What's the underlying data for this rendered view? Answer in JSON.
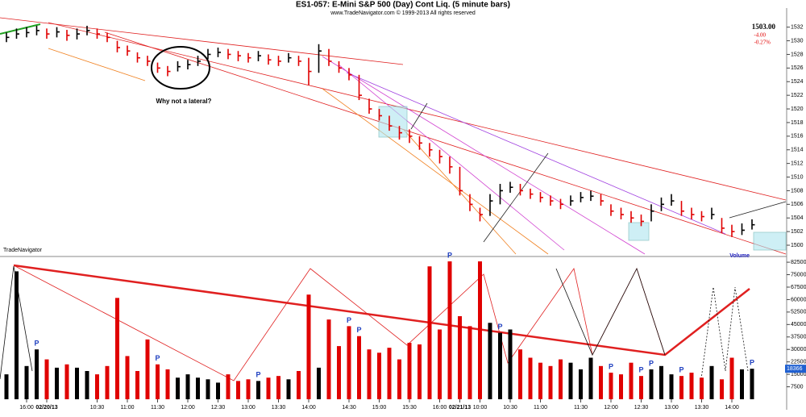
{
  "header": {
    "title": "ES1-057:  E-Mini S&P 500 (Day) Cont Liq.  (5 minute bars)",
    "copyright": "www.TradeNavigator.com © 1999-2013 All rights reserved"
  },
  "watermark": "TradeNavigator",
  "quote": {
    "last": "1503.00",
    "change": "-4.00",
    "change_pct": "-0.27%"
  },
  "annotation": "Why not a lateral?",
  "volume_marker": "P",
  "chart_data": [
    {
      "type": "ohlc",
      "colors": {
        "up": "#000000",
        "down": "#e00000"
      },
      "ylim": [
        1498.7,
        1534.8
      ],
      "yticks": [
        1500,
        1502,
        1504,
        1506,
        1508,
        1510,
        1512,
        1514,
        1516,
        1518,
        1520,
        1522,
        1524,
        1526,
        1528,
        1530,
        1532
      ],
      "series": [
        {
          "name": "High",
          "values": [
            1531.2,
            1531.8,
            1532,
            1532.2,
            1531.8,
            1532,
            1531.6,
            1531.8,
            1532.2,
            1531.8,
            1531.2,
            1530,
            1529.3,
            1528.3,
            1527.8,
            1526.8,
            1526.3,
            1527,
            1527.2,
            1527.8,
            1528.8,
            1529,
            1528.8,
            1528.5,
            1528.2,
            1528.5,
            1528,
            1527.8,
            1528.2,
            1527.8,
            1527.5,
            1529.5,
            1528.8,
            1527,
            1526,
            1525,
            1521.5,
            1520,
            1519,
            1517.5,
            1517,
            1516,
            1515,
            1514,
            1513,
            1511.5,
            1507.5,
            1505.5,
            1507.5,
            1509,
            1509.3,
            1509,
            1508.3,
            1507.8,
            1507.3,
            1506.8,
            1507.3,
            1507.8,
            1508,
            1507.5,
            1506,
            1505.5,
            1505,
            1504.5,
            1506,
            1507,
            1507.5,
            1506.5,
            1505.5,
            1505,
            1505.5,
            1504,
            1503,
            1503.2,
            1503.8
          ]
        },
        {
          "name": "Low",
          "values": [
            1529.8,
            1530.3,
            1530.5,
            1530.8,
            1530.3,
            1530.5,
            1530,
            1530.2,
            1530.8,
            1530.3,
            1529.8,
            1528.3,
            1527.8,
            1526.8,
            1526.3,
            1525.3,
            1524.8,
            1525.5,
            1525.8,
            1526.3,
            1527.3,
            1527.6,
            1527.3,
            1527,
            1526.8,
            1527,
            1526.5,
            1526.3,
            1526.8,
            1526.3,
            1523.5,
            1525.3,
            1526.3,
            1525.3,
            1524.2,
            1521.3,
            1519.3,
            1518.3,
            1516.8,
            1515.5,
            1515,
            1514,
            1513,
            1512,
            1510.5,
            1507.3,
            1505,
            1503.5,
            1504.3,
            1506,
            1507.7,
            1507.3,
            1506.8,
            1506.3,
            1505.8,
            1505.3,
            1505.8,
            1506.3,
            1506.5,
            1505.8,
            1504.3,
            1503.8,
            1503.3,
            1502.8,
            1503.5,
            1505,
            1505.8,
            1504.3,
            1503.8,
            1503.5,
            1503.8,
            1501.8,
            1501.2,
            1501.5,
            1502.3
          ]
        },
        {
          "name": "Close",
          "values": [
            1530.5,
            1531,
            1531.2,
            1531.5,
            1531,
            1531.3,
            1530.8,
            1531,
            1531.5,
            1531,
            1530.5,
            1529,
            1528.5,
            1527.5,
            1527,
            1526,
            1525.5,
            1526.2,
            1526.5,
            1527,
            1528,
            1528.3,
            1528,
            1527.8,
            1527.5,
            1527.8,
            1527.2,
            1527,
            1527.5,
            1527,
            1525.5,
            1528.5,
            1527,
            1526,
            1525,
            1522,
            1520,
            1519,
            1517.5,
            1516.5,
            1516,
            1515,
            1514,
            1513,
            1511.5,
            1508,
            1506,
            1504.5,
            1506.5,
            1508,
            1508.5,
            1508,
            1507.5,
            1507,
            1506.5,
            1506,
            1506.5,
            1507,
            1507.2,
            1506.5,
            1505,
            1504.5,
            1504,
            1503.5,
            1505,
            1506,
            1506.5,
            1505,
            1504.5,
            1504.2,
            1504.5,
            1502.5,
            1502,
            1502.2,
            1503
          ]
        }
      ]
    },
    {
      "type": "bar",
      "title": "Volume",
      "colors": {
        "up": "#000000",
        "down": "#e00000"
      },
      "ylim": [
        0,
        84000
      ],
      "yticks": [
        7500,
        15000,
        22500,
        30000,
        37500,
        45000,
        52500,
        60000,
        67500,
        75000,
        82500
      ],
      "categories": [
        null,
        null,
        "16:00",
        null,
        "02/20/13",
        null,
        null,
        null,
        null,
        "10:30",
        null,
        null,
        "11:00",
        null,
        null,
        "11:30",
        null,
        null,
        "12:00",
        null,
        null,
        "12:30",
        null,
        null,
        "13:00",
        null,
        null,
        "13:30",
        null,
        null,
        "14:00",
        null,
        null,
        null,
        "14:30",
        null,
        null,
        "15:00",
        null,
        null,
        "15:30",
        null,
        null,
        "16:00",
        null,
        "02/21/13",
        null,
        "10:00",
        null,
        null,
        "10:30",
        null,
        null,
        "11:00",
        null,
        null,
        null,
        "11:30",
        null,
        null,
        "12:00",
        null,
        null,
        "12:30",
        null,
        null,
        "13:00",
        null,
        null,
        "13:30",
        null,
        null,
        "14:00",
        null,
        null
      ],
      "values": [
        15000,
        77000,
        20000,
        30000,
        24000,
        19000,
        21000,
        19000,
        17000,
        15000,
        20000,
        61000,
        26000,
        17000,
        36000,
        21000,
        18000,
        13000,
        15000,
        13000,
        12000,
        10000,
        15000,
        11000,
        12000,
        11000,
        13000,
        14000,
        12000,
        17000,
        63000,
        19000,
        48000,
        32000,
        44000,
        38000,
        30000,
        28000,
        31000,
        24000,
        34000,
        33000,
        80000,
        42000,
        83000,
        50000,
        44000,
        83000,
        46000,
        40000,
        42000,
        30000,
        25000,
        22000,
        20000,
        24000,
        22000,
        18000,
        25000,
        20000,
        16000,
        15000,
        22000,
        14000,
        18000,
        20000,
        15000,
        14000,
        16000,
        13000,
        20000,
        12000,
        25000,
        18000,
        18366
      ]
    }
  ]
}
